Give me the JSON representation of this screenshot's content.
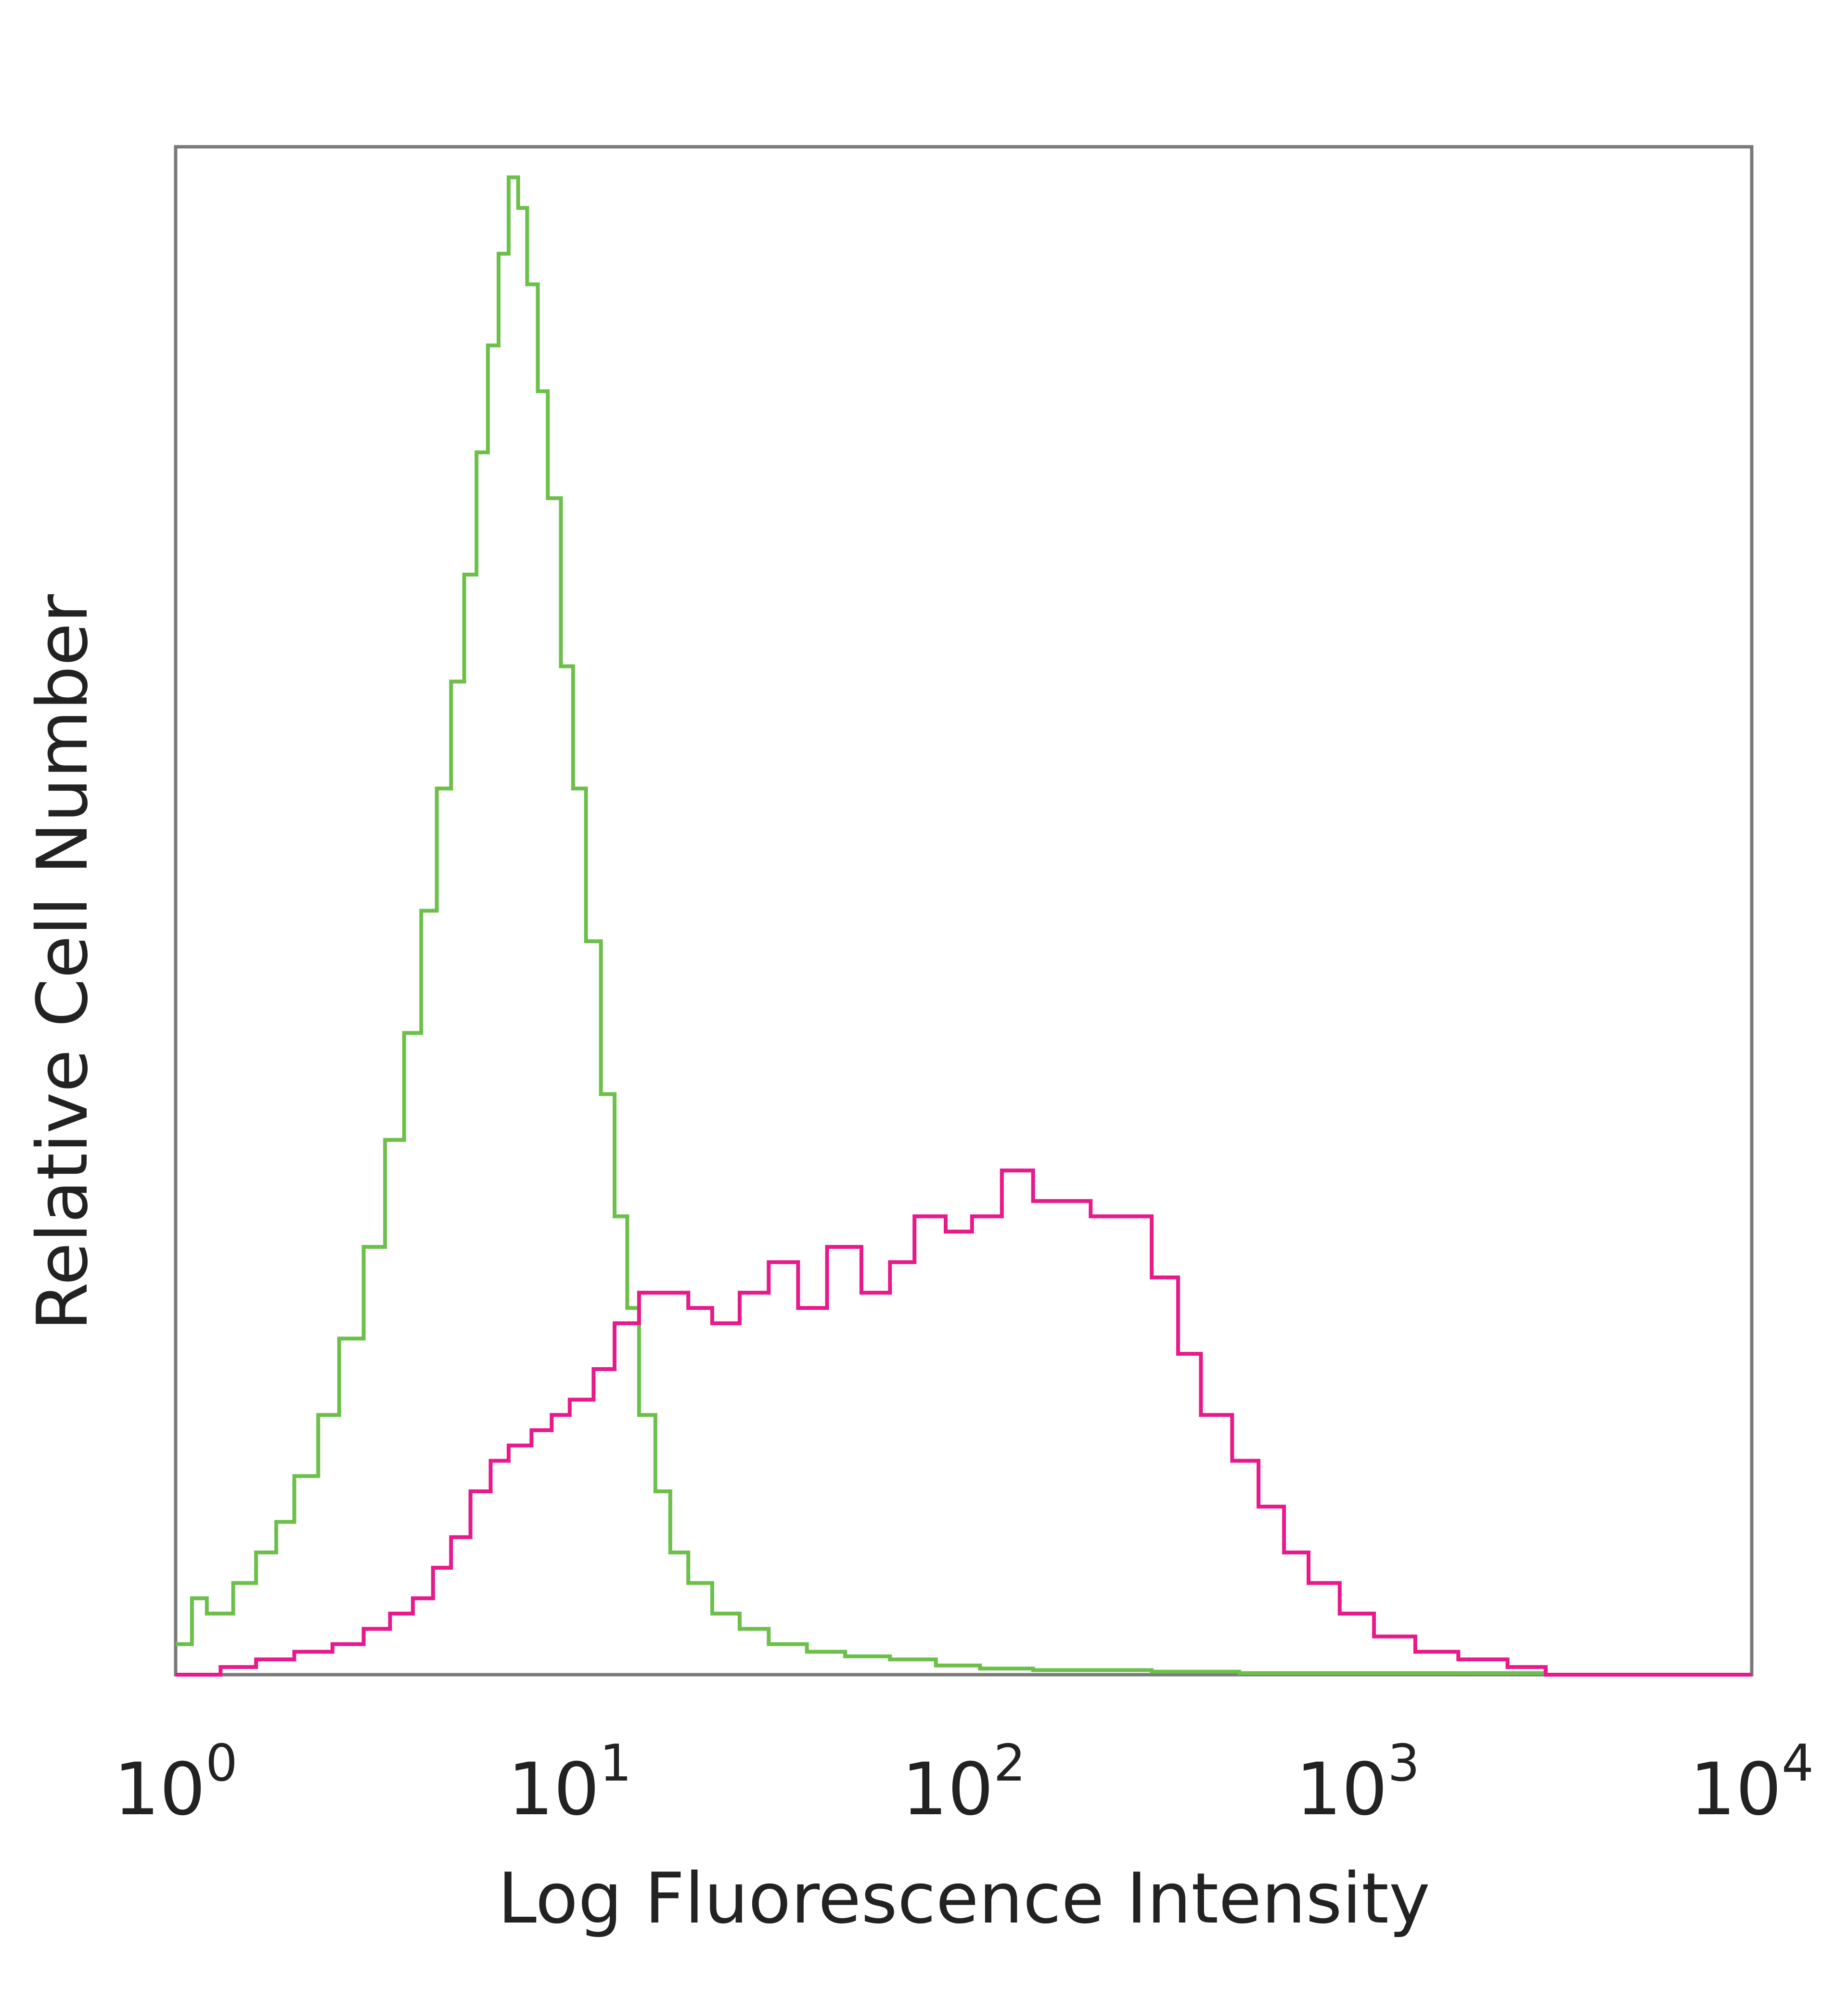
{
  "chart_data": {
    "type": "line",
    "xlabel": "Log Fluorescence Intensity",
    "ylabel": "Relative Cell Number",
    "x_scale": "log",
    "xlim": [
      1,
      10000
    ],
    "ylim": [
      0,
      100
    ],
    "grid": false,
    "x_ticks": [
      {
        "value": 1,
        "base": "10",
        "exp": "0"
      },
      {
        "value": 10,
        "base": "10",
        "exp": "1"
      },
      {
        "value": 100,
        "base": "10",
        "exp": "2"
      },
      {
        "value": 1000,
        "base": "10",
        "exp": "3"
      },
      {
        "value": 10000,
        "base": "10",
        "exp": "4"
      }
    ],
    "series": [
      {
        "color": "#6cc04a",
        "x": [
          1.0,
          1.1,
          1.2,
          1.4,
          1.6,
          1.8,
          2.0,
          2.3,
          2.6,
          3.0,
          3.4,
          3.8,
          4.2,
          4.6,
          5.0,
          5.4,
          5.8,
          6.2,
          6.6,
          7.0,
          7.4,
          7.8,
          8.3,
          8.8,
          9.5,
          10.2,
          11.0,
          12.0,
          13.0,
          14.0,
          15.0,
          16.5,
          18.0,
          20.0,
          23.0,
          27.0,
          32.0,
          40.0,
          50.0,
          65.0,
          85.0,
          110.0,
          150.0,
          200.0,
          300.0,
          500.0,
          1000.0,
          3000.0,
          10000.0
        ],
        "y": [
          2,
          5,
          4,
          6,
          8,
          10,
          13,
          17,
          22,
          28,
          35,
          42,
          50,
          58,
          65,
          72,
          80,
          87,
          93,
          98,
          96,
          91,
          84,
          77,
          66,
          58,
          48,
          38,
          30,
          24,
          17,
          12,
          8,
          6,
          4,
          3,
          2,
          1.5,
          1.2,
          1,
          0.6,
          0.4,
          0.3,
          0.3,
          0.2,
          0.1,
          0.1,
          0,
          0
        ]
      },
      {
        "color": "#e8198b",
        "x": [
          1.0,
          1.3,
          1.6,
          2.0,
          2.5,
          3.0,
          3.5,
          4.0,
          4.5,
          5.0,
          5.6,
          6.3,
          7.0,
          8.0,
          9.0,
          10.0,
          11.5,
          13.0,
          15.0,
          17.0,
          20.0,
          23.0,
          27.0,
          32.0,
          38.0,
          45.0,
          55.0,
          65.0,
          75.0,
          90.0,
          105.0,
          125.0,
          150.0,
          180.0,
          210.0,
          250.0,
          300.0,
          350.0,
          400.0,
          480.0,
          560.0,
          650.0,
          750.0,
          900.0,
          1100.0,
          1400.0,
          1800.0,
          2400.0,
          3000.0,
          10000.0
        ],
        "y": [
          0,
          0.5,
          1,
          1.5,
          2,
          3,
          4,
          5,
          7,
          9,
          12,
          14,
          15,
          16,
          17,
          18,
          20,
          23,
          25,
          25,
          24,
          23,
          25,
          27,
          24,
          28,
          25,
          27,
          30,
          29,
          30,
          33,
          31,
          31,
          30,
          30,
          26,
          21,
          17,
          14,
          11,
          8,
          6,
          4,
          2.5,
          1.5,
          1,
          0.5,
          0,
          0
        ]
      }
    ]
  }
}
